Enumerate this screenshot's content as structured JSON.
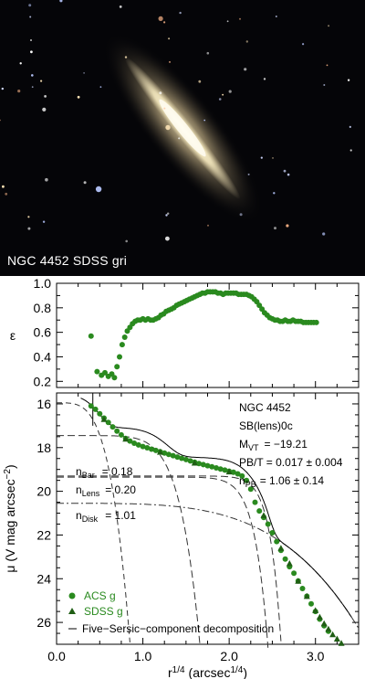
{
  "image": {
    "caption": "NGC 4452  SDSS gri",
    "background_color": "#050508",
    "galaxy_color": "#d9caa0"
  },
  "chart_data": [
    {
      "type": "scatter",
      "panel": "top",
      "ylabel": "ε",
      "xlim": [
        0.0,
        3.5
      ],
      "ylim": [
        0.15,
        1.0
      ],
      "yticks": [
        "0.2",
        "0.4",
        "0.6",
        "0.8",
        "1.0"
      ],
      "grid": false,
      "color": "#2a8a1f",
      "series": [
        {
          "x": [
            0.4,
            0.47,
            0.52,
            0.56,
            0.6,
            0.64,
            0.67,
            0.7,
            0.73,
            0.76,
            0.79,
            0.82,
            0.85,
            0.88,
            0.91,
            0.94,
            0.97,
            1.0,
            1.03,
            1.06,
            1.09,
            1.12,
            1.15,
            1.18,
            1.21,
            1.24,
            1.27,
            1.3,
            1.33,
            1.36,
            1.39,
            1.42,
            1.45,
            1.48,
            1.51,
            1.54,
            1.57,
            1.6,
            1.63,
            1.66,
            1.69,
            1.72,
            1.75,
            1.78,
            1.81,
            1.84,
            1.87,
            1.9,
            1.93,
            1.96,
            1.99,
            2.02,
            2.05,
            2.08,
            2.11,
            2.14,
            2.17,
            2.2,
            2.23,
            2.26,
            2.29,
            2.32,
            2.35,
            2.38,
            2.41,
            2.44,
            2.47,
            2.5,
            2.53,
            2.56,
            2.59,
            2.62,
            2.65,
            2.68,
            2.71,
            2.74,
            2.77,
            2.8,
            2.83,
            2.86,
            2.89,
            2.92,
            2.95,
            2.98,
            3.01
          ],
          "y": [
            0.57,
            0.28,
            0.25,
            0.27,
            0.24,
            0.26,
            0.23,
            0.32,
            0.4,
            0.5,
            0.56,
            0.61,
            0.64,
            0.67,
            0.69,
            0.7,
            0.7,
            0.71,
            0.7,
            0.71,
            0.7,
            0.7,
            0.71,
            0.72,
            0.74,
            0.75,
            0.77,
            0.78,
            0.79,
            0.8,
            0.82,
            0.83,
            0.84,
            0.85,
            0.86,
            0.87,
            0.88,
            0.89,
            0.9,
            0.91,
            0.92,
            0.92,
            0.93,
            0.93,
            0.93,
            0.93,
            0.92,
            0.92,
            0.91,
            0.92,
            0.92,
            0.92,
            0.92,
            0.92,
            0.91,
            0.91,
            0.91,
            0.91,
            0.9,
            0.89,
            0.87,
            0.85,
            0.82,
            0.79,
            0.76,
            0.74,
            0.72,
            0.71,
            0.7,
            0.7,
            0.69,
            0.69,
            0.7,
            0.69,
            0.69,
            0.7,
            0.69,
            0.69,
            0.69,
            0.68,
            0.68,
            0.68,
            0.68,
            0.68,
            0.68
          ]
        }
      ]
    },
    {
      "type": "scatter",
      "panel": "bottom",
      "xlabel": "r",
      "xlabel_sup": "1/4",
      "xlabel_unit": "(arcsec",
      "xlabel_unit_sup": "1/4",
      "xlabel_close": ")",
      "ylabel": "μ (V mag arcsec",
      "ylabel_sup": "−2",
      "ylabel_close": ")",
      "xlim": [
        0.0,
        3.5
      ],
      "ylim": [
        27.0,
        15.5
      ],
      "xticks": [
        "0.0",
        "1.0",
        "2.0",
        "3.0"
      ],
      "yticks": [
        "16",
        "18",
        "20",
        "22",
        "24",
        "26"
      ],
      "grid": false,
      "color": "#2a8a1f",
      "annotations": {
        "object": "NGC 4452",
        "morph": "SB(lens)0c",
        "mag_label": "M",
        "mag_sub": "VT",
        "mag_value": "= −19.21",
        "pbt": "PB/T = 0.017 ± 0.004",
        "npb_label": "n",
        "npb_sub": "PB",
        "npb_value": "= 1.06 ± 0.14"
      },
      "component_labels": [
        {
          "n": "n",
          "sub": "Bar",
          "value": "= 0.18"
        },
        {
          "n": "n",
          "sub": "Lens",
          "value": "= 0.20"
        },
        {
          "n": "n",
          "sub": "Disk",
          "value": "= 1.01"
        }
      ],
      "legend": [
        {
          "marker": "circle",
          "label": "ACS g"
        },
        {
          "marker": "triangle",
          "label": "SDSS g"
        },
        {
          "marker": "dash",
          "label": "Five−Sersic−component decomposition"
        }
      ],
      "series": [
        {
          "name": "ACS g",
          "marker": "circle",
          "x": [
            0.4,
            0.45,
            0.5,
            0.55,
            0.6,
            0.65,
            0.7,
            0.75,
            0.8,
            0.85,
            0.9,
            0.95,
            1.0,
            1.05,
            1.1,
            1.15,
            1.2,
            1.25,
            1.3,
            1.35,
            1.4,
            1.45,
            1.5,
            1.55,
            1.6,
            1.65,
            1.7,
            1.75,
            1.8,
            1.85,
            1.9,
            1.95,
            2.0,
            2.05,
            2.1,
            2.15,
            2.2,
            2.25,
            2.3,
            2.35,
            2.4,
            2.45,
            2.5,
            2.55,
            2.6,
            2.65,
            2.7,
            2.75,
            2.8,
            2.85,
            2.9,
            2.95,
            3.0,
            3.05,
            3.1,
            3.15
          ],
          "y": [
            16.1,
            16.25,
            16.45,
            16.65,
            16.85,
            17.05,
            17.25,
            17.42,
            17.58,
            17.7,
            17.8,
            17.88,
            17.95,
            18.01,
            18.07,
            18.13,
            18.19,
            18.25,
            18.31,
            18.37,
            18.43,
            18.49,
            18.55,
            18.61,
            18.67,
            18.73,
            18.78,
            18.83,
            18.88,
            18.93,
            18.98,
            19.03,
            19.08,
            19.13,
            19.2,
            19.3,
            19.5,
            19.9,
            20.5,
            20.9,
            21.2,
            21.5,
            21.9,
            22.3,
            22.7,
            23.1,
            23.45,
            23.75,
            24.1,
            24.45,
            24.8,
            25.15,
            25.5,
            25.85,
            26.15,
            26.4
          ]
        },
        {
          "name": "SDSS g",
          "marker": "triangle",
          "x": [
            0.55,
            0.8,
            1.2,
            1.6,
            2.0,
            2.4,
            2.6,
            2.7,
            2.8,
            2.9,
            3.0,
            3.05,
            3.1,
            3.15,
            3.2,
            3.25,
            3.3,
            3.35,
            3.4
          ],
          "y": [
            16.7,
            17.6,
            18.2,
            18.7,
            19.1,
            21.1,
            22.6,
            23.3,
            24.1,
            24.8,
            25.45,
            25.75,
            26.05,
            26.3,
            26.55,
            26.75,
            26.95,
            27.1,
            27.3
          ]
        }
      ]
    }
  ]
}
